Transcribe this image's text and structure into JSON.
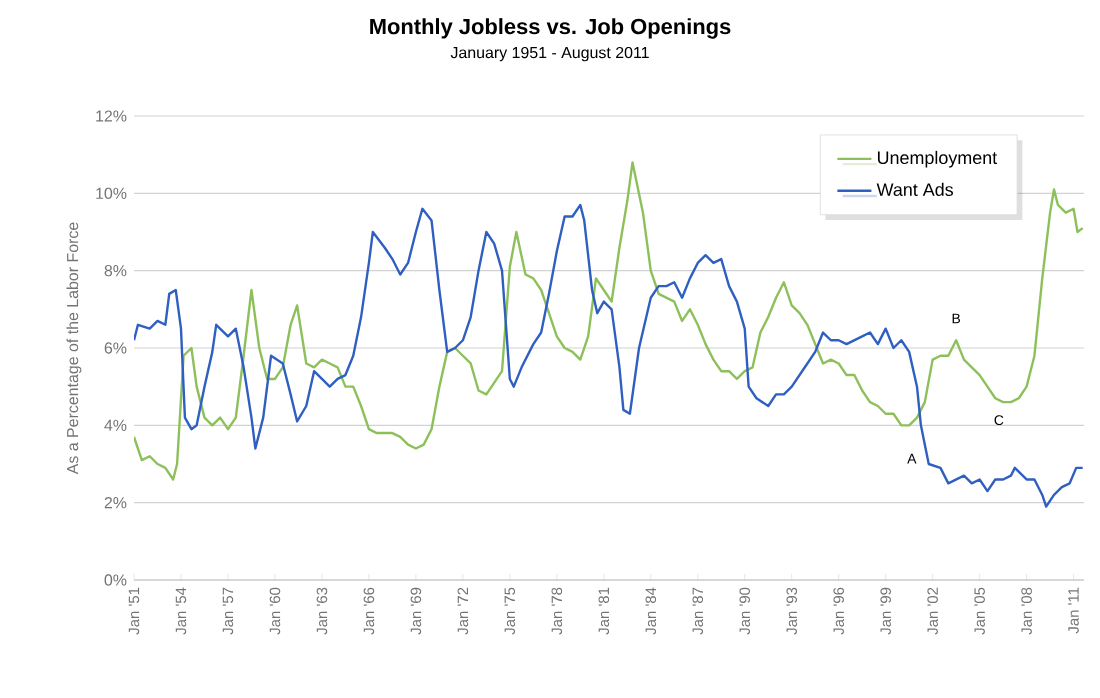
{
  "chart_data": {
    "type": "line",
    "title": "Monthly Jobless vs. Job Openings",
    "subtitle": "January 1951 - August 2011",
    "ylabel": "As a Percentage of the Labor Force",
    "xlim": [
      "1951-01",
      "2011-09"
    ],
    "ylim": [
      0,
      12
    ],
    "xticks": [
      {
        "value": "1951-01",
        "label": "Jan '51"
      },
      {
        "value": "1954-01",
        "label": "Jan '54"
      },
      {
        "value": "1957-01",
        "label": "Jan '57"
      },
      {
        "value": "1960-01",
        "label": "Jan '60"
      },
      {
        "value": "1963-01",
        "label": "Jan '63"
      },
      {
        "value": "1966-01",
        "label": "Jan '66"
      },
      {
        "value": "1969-01",
        "label": "Jan '69"
      },
      {
        "value": "1972-01",
        "label": "Jan '72"
      },
      {
        "value": "1975-01",
        "label": "Jan '75"
      },
      {
        "value": "1978-01",
        "label": "Jan '78"
      },
      {
        "value": "1981-01",
        "label": "Jan '81"
      },
      {
        "value": "1984-01",
        "label": "Jan '84"
      },
      {
        "value": "1987-01",
        "label": "Jan '87"
      },
      {
        "value": "1990-01",
        "label": "Jan '90"
      },
      {
        "value": "1993-01",
        "label": "Jan '93"
      },
      {
        "value": "1996-01",
        "label": "Jan '96"
      },
      {
        "value": "1999-01",
        "label": "Jan '99"
      },
      {
        "value": "2002-01",
        "label": "Jan '02"
      },
      {
        "value": "2005-01",
        "label": "Jan '05"
      },
      {
        "value": "2008-01",
        "label": "Jan '08"
      },
      {
        "value": "2011-01",
        "label": "Jan '11"
      }
    ],
    "yticks": [
      {
        "value": 0,
        "label": "0%"
      },
      {
        "value": 2,
        "label": "2%"
      },
      {
        "value": 4,
        "label": "4%"
      },
      {
        "value": 6,
        "label": "6%"
      },
      {
        "value": 8,
        "label": "8%"
      },
      {
        "value": 10,
        "label": "10%"
      },
      {
        "value": 12,
        "label": "12%"
      }
    ],
    "grid": "y",
    "legend": "top right",
    "marker": "none",
    "line_style": "solid",
    "annotations": [
      {
        "text": "A",
        "x": "2001-06",
        "y": 3.6
      },
      {
        "text": "B",
        "x": "2003-07",
        "y": 6.2
      },
      {
        "text": "C",
        "x": "2007-01",
        "y": 4.6
      }
    ],
    "series": [
      {
        "name": "Unemployment",
        "color": "#8dc05a",
        "x": [
          "1951-01",
          "1951-07",
          "1952-01",
          "1952-07",
          "1953-01",
          "1953-07",
          "1953-10",
          "1954-03",
          "1954-09",
          "1955-01",
          "1955-07",
          "1956-01",
          "1956-07",
          "1957-01",
          "1957-07",
          "1958-01",
          "1958-07",
          "1959-01",
          "1959-07",
          "1960-01",
          "1960-07",
          "1961-01",
          "1961-06",
          "1962-01",
          "1962-07",
          "1963-01",
          "1963-07",
          "1964-01",
          "1964-07",
          "1965-01",
          "1965-07",
          "1966-01",
          "1966-07",
          "1967-01",
          "1967-07",
          "1968-01",
          "1968-07",
          "1969-01",
          "1969-07",
          "1970-01",
          "1970-07",
          "1971-01",
          "1971-07",
          "1972-01",
          "1972-07",
          "1973-01",
          "1973-07",
          "1974-01",
          "1974-07",
          "1975-01",
          "1975-06",
          "1976-01",
          "1976-07",
          "1977-01",
          "1977-07",
          "1978-01",
          "1978-07",
          "1979-01",
          "1979-07",
          "1980-01",
          "1980-07",
          "1981-01",
          "1981-07",
          "1982-01",
          "1982-07",
          "1982-11",
          "1983-07",
          "1984-01",
          "1984-07",
          "1985-01",
          "1985-07",
          "1986-01",
          "1986-07",
          "1987-01",
          "1987-07",
          "1988-01",
          "1988-07",
          "1989-01",
          "1989-07",
          "1990-01",
          "1990-07",
          "1991-01",
          "1991-07",
          "1992-01",
          "1992-07",
          "1993-01",
          "1993-07",
          "1994-01",
          "1994-07",
          "1995-01",
          "1995-07",
          "1996-01",
          "1996-07",
          "1997-01",
          "1997-07",
          "1998-01",
          "1998-07",
          "1999-01",
          "1999-07",
          "2000-01",
          "2000-07",
          "2001-01",
          "2001-07",
          "2002-01",
          "2002-07",
          "2003-01",
          "2003-07",
          "2004-01",
          "2004-07",
          "2005-01",
          "2005-07",
          "2006-01",
          "2006-07",
          "2007-01",
          "2007-07",
          "2008-01",
          "2008-07",
          "2009-01",
          "2009-07",
          "2009-10",
          "2010-01",
          "2010-07",
          "2011-01",
          "2011-04",
          "2011-08"
        ],
        "values": [
          3.7,
          3.1,
          3.2,
          3.0,
          2.9,
          2.6,
          3.0,
          5.8,
          6.0,
          5.0,
          4.2,
          4.0,
          4.2,
          3.9,
          4.2,
          5.8,
          7.5,
          6.0,
          5.2,
          5.2,
          5.5,
          6.6,
          7.1,
          5.6,
          5.5,
          5.7,
          5.6,
          5.5,
          5.0,
          5.0,
          4.5,
          3.9,
          3.8,
          3.8,
          3.8,
          3.7,
          3.5,
          3.4,
          3.5,
          3.9,
          5.0,
          5.9,
          6.0,
          5.8,
          5.6,
          4.9,
          4.8,
          5.1,
          5.4,
          8.1,
          9.0,
          7.9,
          7.8,
          7.5,
          6.9,
          6.3,
          6.0,
          5.9,
          5.7,
          6.3,
          7.8,
          7.5,
          7.2,
          8.6,
          9.8,
          10.8,
          9.5,
          8.0,
          7.4,
          7.3,
          7.2,
          6.7,
          7.0,
          6.6,
          6.1,
          5.7,
          5.4,
          5.4,
          5.2,
          5.4,
          5.5,
          6.4,
          6.8,
          7.3,
          7.7,
          7.1,
          6.9,
          6.6,
          6.1,
          5.6,
          5.7,
          5.6,
          5.3,
          5.3,
          4.9,
          4.6,
          4.5,
          4.3,
          4.3,
          4.0,
          4.0,
          4.2,
          4.6,
          5.7,
          5.8,
          5.8,
          6.2,
          5.7,
          5.5,
          5.3,
          5.0,
          4.7,
          4.6,
          4.6,
          4.7,
          5.0,
          5.8,
          7.8,
          9.5,
          10.1,
          9.7,
          9.5,
          9.6,
          9.0,
          9.1
        ]
      },
      {
        "name": "Want Ads",
        "color": "#2f5fc0",
        "x": [
          "1951-01",
          "1951-04",
          "1952-01",
          "1952-07",
          "1953-01",
          "1953-04",
          "1953-09",
          "1954-01",
          "1954-04",
          "1954-09",
          "1955-01",
          "1955-07",
          "1956-01",
          "1956-04",
          "1957-01",
          "1957-07",
          "1958-01",
          "1958-07",
          "1958-10",
          "1959-04",
          "1959-10",
          "1960-07",
          "1961-01",
          "1961-06",
          "1962-01",
          "1962-07",
          "1963-01",
          "1963-07",
          "1964-01",
          "1964-07",
          "1965-01",
          "1965-07",
          "1966-01",
          "1966-04",
          "1967-01",
          "1967-07",
          "1968-01",
          "1968-07",
          "1969-01",
          "1969-06",
          "1970-01",
          "1970-07",
          "1971-01",
          "1971-07",
          "1972-01",
          "1972-07",
          "1973-01",
          "1973-07",
          "1974-01",
          "1974-07",
          "1975-01",
          "1975-04",
          "1975-10",
          "1976-07",
          "1977-01",
          "1977-07",
          "1978-01",
          "1978-07",
          "1979-01",
          "1979-07",
          "1979-10",
          "1980-04",
          "1980-08",
          "1981-01",
          "1981-07",
          "1982-01",
          "1982-04",
          "1982-09",
          "1983-04",
          "1984-01",
          "1984-07",
          "1985-01",
          "1985-07",
          "1986-01",
          "1986-07",
          "1987-01",
          "1987-07",
          "1988-01",
          "1988-07",
          "1989-01",
          "1989-07",
          "1990-01",
          "1990-04",
          "1990-10",
          "1991-07",
          "1992-01",
          "1992-07",
          "1993-01",
          "1993-07",
          "1994-01",
          "1994-07",
          "1995-01",
          "1995-07",
          "1996-01",
          "1996-07",
          "1997-01",
          "1997-07",
          "1998-01",
          "1998-07",
          "1999-01",
          "1999-07",
          "2000-01",
          "2000-07",
          "2001-01",
          "2001-04",
          "2001-10",
          "2002-07",
          "2003-01",
          "2003-07",
          "2004-01",
          "2004-07",
          "2005-01",
          "2005-07",
          "2006-01",
          "2006-07",
          "2007-01",
          "2007-04",
          "2008-01",
          "2008-07",
          "2009-01",
          "2009-04",
          "2009-10",
          "2010-04",
          "2010-10",
          "2011-03",
          "2011-08"
        ],
        "values": [
          6.2,
          6.6,
          6.5,
          6.7,
          6.6,
          7.4,
          7.5,
          6.5,
          4.2,
          3.9,
          4.0,
          5.0,
          5.9,
          6.6,
          6.3,
          6.5,
          5.5,
          4.2,
          3.4,
          4.2,
          5.8,
          5.6,
          4.8,
          4.1,
          4.5,
          5.4,
          5.2,
          5.0,
          5.2,
          5.3,
          5.8,
          6.8,
          8.2,
          9.0,
          8.6,
          8.3,
          7.9,
          8.2,
          9.0,
          9.6,
          9.3,
          7.5,
          5.9,
          6.0,
          6.2,
          6.8,
          8.0,
          9.0,
          8.7,
          8.0,
          5.2,
          5.0,
          5.5,
          6.1,
          6.4,
          7.4,
          8.5,
          9.4,
          9.4,
          9.7,
          9.3,
          7.5,
          6.9,
          7.2,
          7.0,
          5.5,
          4.4,
          4.3,
          6.0,
          7.3,
          7.6,
          7.6,
          7.7,
          7.3,
          7.8,
          8.2,
          8.4,
          8.2,
          8.3,
          7.6,
          7.2,
          6.5,
          5.0,
          4.7,
          4.5,
          4.8,
          4.8,
          5.0,
          5.3,
          5.6,
          5.9,
          6.4,
          6.2,
          6.2,
          6.1,
          6.2,
          6.3,
          6.4,
          6.1,
          6.5,
          6.0,
          6.2,
          5.9,
          5.0,
          4.0,
          3.0,
          2.9,
          2.5,
          2.6,
          2.7,
          2.5,
          2.6,
          2.3,
          2.6,
          2.6,
          2.7,
          2.9,
          2.6,
          2.6,
          2.2,
          1.9,
          2.2,
          2.4,
          2.5,
          2.9,
          2.9
        ]
      }
    ]
  }
}
